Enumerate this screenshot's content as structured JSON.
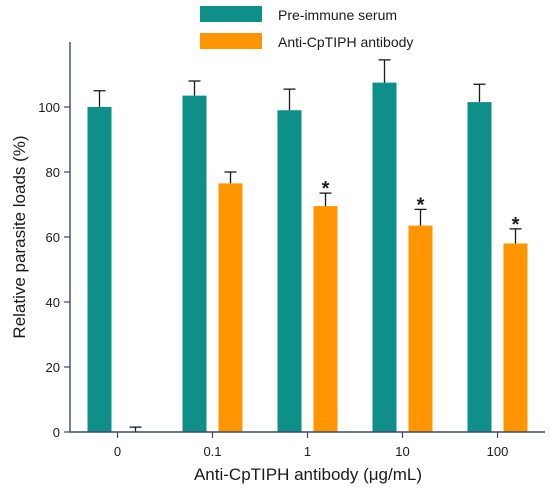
{
  "chart_data": {
    "type": "bar",
    "title": "",
    "xlabel": "Anti-CpTIPH antibody (μg/mL)",
    "ylabel": "Relative parasite loads (%)",
    "categories": [
      "0",
      "0.1",
      "1",
      "10",
      "100"
    ],
    "ylim": [
      0,
      120
    ],
    "yticks": [
      0,
      20,
      40,
      60,
      80,
      100
    ],
    "grid": false,
    "legend_position": "top-center",
    "series": [
      {
        "name": "Pre-immune serum",
        "color": "#0e8f8a",
        "values": [
          100,
          103.5,
          99,
          107.5,
          101.5
        ],
        "errors": [
          5,
          4.5,
          6.5,
          7,
          5.5
        ]
      },
      {
        "name": "Anti-CpTIPH antibody",
        "color": "#ff9500",
        "values": [
          0,
          76.5,
          69.5,
          63.5,
          58
        ],
        "errors": [
          1.5,
          3.5,
          4,
          5,
          4.5
        ]
      }
    ],
    "significance": [
      {
        "category": "1",
        "series": "Anti-CpTIPH antibody",
        "label": "*"
      },
      {
        "category": "10",
        "series": "Anti-CpTIPH antibody",
        "label": "*"
      },
      {
        "category": "100",
        "series": "Anti-CpTIPH antibody",
        "label": "*"
      }
    ]
  }
}
